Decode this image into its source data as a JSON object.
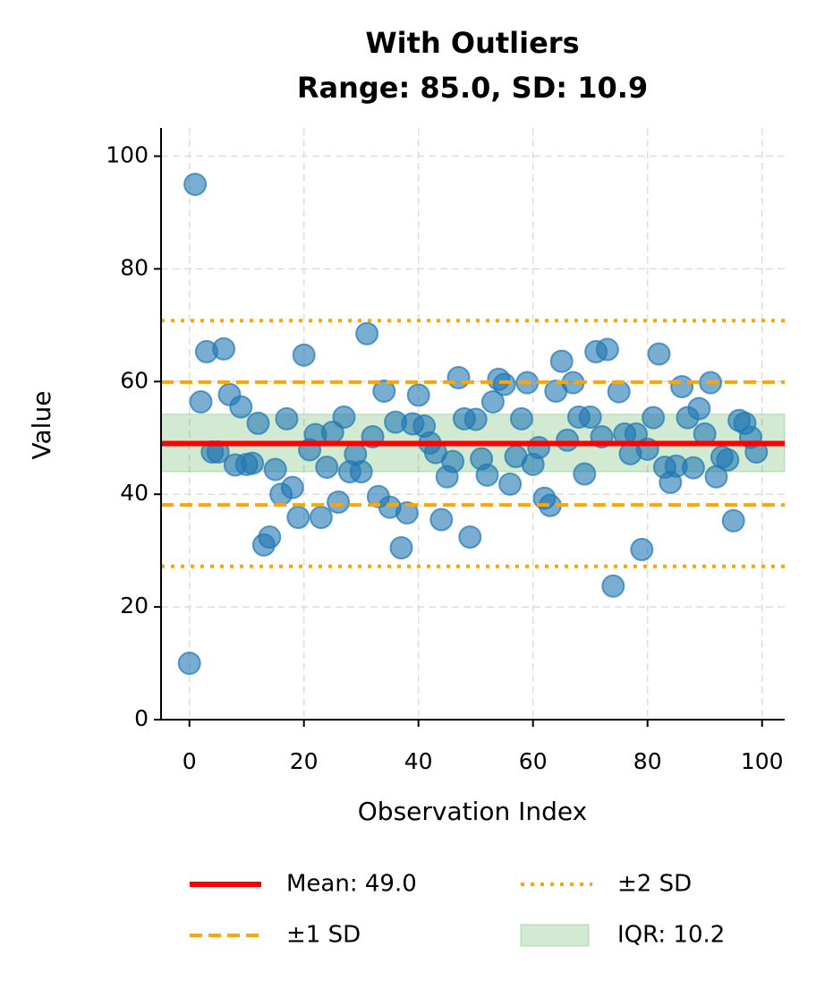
{
  "chart_data": {
    "type": "scatter",
    "title": "With Outliers",
    "subtitle": "Range: 85.0, SD: 10.9",
    "x_label": "Observation Index",
    "y_label": "Value",
    "x": [
      0,
      1,
      2,
      3,
      4,
      5,
      6,
      7,
      8,
      9,
      10,
      11,
      12,
      13,
      14,
      15,
      16,
      17,
      18,
      19,
      20,
      21,
      22,
      23,
      24,
      25,
      26,
      27,
      28,
      29,
      30,
      31,
      32,
      33,
      34,
      35,
      36,
      37,
      38,
      39,
      40,
      41,
      42,
      43,
      44,
      45,
      46,
      47,
      48,
      49,
      50,
      51,
      52,
      53,
      54,
      55,
      56,
      57,
      58,
      59,
      60,
      61,
      62,
      63,
      64,
      65,
      66,
      67,
      68,
      69,
      70,
      71,
      72,
      73,
      74,
      75,
      76,
      77,
      78,
      79,
      80,
      81,
      82,
      83,
      84,
      85,
      86,
      87,
      88,
      89,
      90,
      91,
      92,
      93,
      94,
      95,
      96,
      97,
      98,
      99
    ],
    "values": [
      10,
      95,
      56.4,
      65.3,
      47.5,
      47.5,
      65.8,
      57.7,
      45.2,
      55.5,
      45.3,
      45.5,
      52.6,
      31,
      32.4,
      44.4,
      40,
      53.4,
      41.2,
      35.9,
      64.7,
      47.9,
      50.6,
      35.9,
      44.8,
      51,
      38.6,
      53.7,
      44,
      47.1,
      44,
      68.5,
      50.2,
      39.6,
      58.3,
      37.7,
      52.8,
      30.5,
      36.7,
      52.5,
      57.6,
      52.1,
      49.1,
      47.4,
      35.5,
      43.1,
      45.8,
      60.7,
      53.4,
      32.4,
      53.3,
      46.3,
      43.4,
      56.4,
      60.4,
      59.5,
      41.8,
      46.7,
      53.4,
      59.8,
      45.3,
      48.3,
      39.3,
      38,
      58.3,
      63.6,
      49.6,
      59.8,
      53.7,
      43.6,
      53.7,
      65.3,
      50.2,
      65.7,
      23.7,
      58.2,
      50.7,
      47.2,
      50.7,
      30.2,
      48,
      53.6,
      64.9,
      44.8,
      42.1,
      45,
      59.1,
      53.6,
      44.7,
      55.2,
      50.7,
      59.8,
      43.1,
      46.6,
      46.1,
      35.3,
      53.1,
      52.6,
      50.1,
      47.5
    ],
    "color": "#1f77b4",
    "reference_lines": [
      {
        "name": "Mean: 49.0",
        "color": "#ff0000",
        "style": "solid",
        "values": [
          49.0
        ]
      },
      {
        "name": "±1 SD",
        "color": "#ffa500",
        "style": "dashed",
        "values": [
          38.1,
          59.9
        ]
      },
      {
        "name": "±2 SD",
        "color": "#ffa500",
        "style": "dotted",
        "values": [
          27.2,
          70.8
        ]
      }
    ],
    "bands": [
      {
        "name": "IQR: 10.2",
        "color": "#2ca02c",
        "range": [
          44.0,
          54.2
        ]
      }
    ],
    "xlim": [
      -4.95,
      103.95
    ],
    "ylim": [
      0,
      105
    ],
    "xticks": [
      0,
      20,
      40,
      60,
      80,
      100
    ],
    "yticks": [
      0,
      20,
      40,
      60,
      80,
      100
    ],
    "grid": true
  }
}
